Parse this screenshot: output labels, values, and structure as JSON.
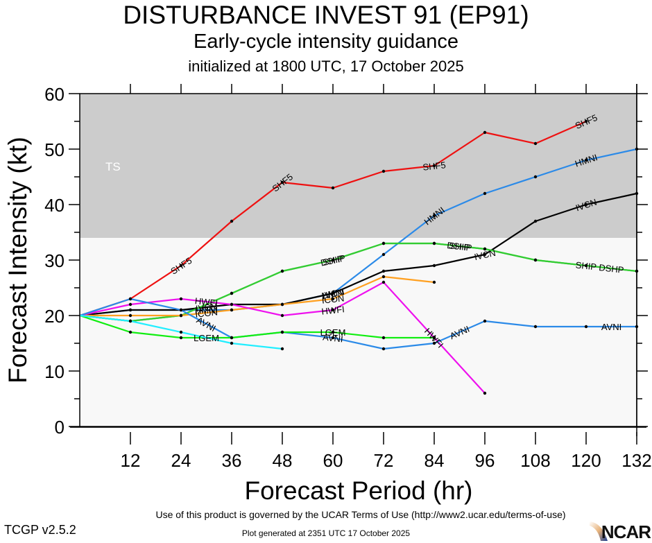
{
  "header": {
    "title": "DISTURBANCE INVEST 91 (EP91)",
    "subtitle": "Early-cycle intensity guidance",
    "init": "initialized at 1800 UTC, 17 October 2025"
  },
  "footer": {
    "terms": "Use of this product is governed by the UCAR Terms of Use (http://www2.ucar.edu/terms-of-use)",
    "version": "TCGP v2.5.2",
    "generated": "Plot generated at 2351 UTC   17 October 2025",
    "logo": "NCAR"
  },
  "chart_data": {
    "type": "line",
    "title": "Early-cycle intensity guidance",
    "xlabel": "Forecast Period (hr)",
    "ylabel": "Forecast Intensity (kt)",
    "xlim": [
      0,
      132
    ],
    "ylim": [
      0,
      60
    ],
    "xticks": [
      12,
      24,
      36,
      48,
      60,
      72,
      84,
      96,
      108,
      120,
      132
    ],
    "yticks": [
      0,
      10,
      20,
      30,
      40,
      50,
      60
    ],
    "regions": [
      {
        "label": "TS",
        "from": 34,
        "to": 60,
        "color": "#cccccc"
      },
      {
        "label": "",
        "from": 0,
        "to": 34,
        "color": "#f8f8f8"
      }
    ],
    "series": [
      {
        "name": "SHF5",
        "color": "#ee1111",
        "x": [
          0,
          12,
          24,
          36,
          48,
          60,
          72,
          84,
          96,
          108,
          120
        ],
        "values": [
          20,
          23,
          29,
          37,
          44,
          43,
          46,
          47,
          53,
          51,
          55
        ],
        "label_at": [
          24,
          48,
          84,
          120
        ]
      },
      {
        "name": "HMNI",
        "color": "#2b8ae8",
        "x": [
          0,
          12,
          24,
          36,
          48,
          60,
          72,
          84,
          96,
          108,
          120,
          132
        ],
        "values": [
          20,
          21,
          21,
          21,
          22,
          24,
          31,
          38,
          42,
          45,
          48,
          50
        ],
        "label_at": [
          30,
          60,
          84,
          120
        ]
      },
      {
        "name": "IVCN",
        "color": "#000000",
        "x": [
          0,
          12,
          24,
          36,
          48,
          60,
          72,
          84,
          96,
          108,
          120,
          132
        ],
        "values": [
          20,
          21,
          21,
          22,
          22,
          24,
          28,
          29,
          31,
          37,
          40,
          42
        ],
        "label_at": [
          30,
          60,
          96,
          120
        ]
      },
      {
        "name": "DSHP",
        "color": "#33cc33",
        "x": [
          0,
          12,
          24,
          36,
          48,
          60,
          72,
          84,
          96,
          108,
          120,
          132
        ],
        "values": [
          20,
          19,
          20,
          24,
          28,
          30,
          33,
          33,
          32,
          30,
          29,
          28
        ],
        "label_at": [
          60,
          90,
          126
        ]
      },
      {
        "name": "SHIP",
        "color": "#33cc33",
        "x": [
          0,
          12,
          24,
          36,
          48,
          60,
          72,
          84,
          96,
          108,
          120,
          132
        ],
        "values": [
          20,
          19,
          20,
          24,
          28,
          30,
          33,
          33,
          32,
          30,
          29,
          28
        ],
        "label_at": [
          60,
          90,
          120
        ]
      },
      {
        "name": "ICON",
        "color": "#ffa020",
        "x": [
          0,
          12,
          24,
          36,
          48,
          60,
          72,
          84
        ],
        "values": [
          20,
          20,
          20,
          21,
          22,
          23,
          27,
          26
        ],
        "label_at": [
          30,
          60
        ]
      },
      {
        "name": "HWFI",
        "color": "#ee11ee",
        "x": [
          0,
          12,
          24,
          36,
          48,
          60,
          72,
          84,
          96
        ],
        "values": [
          20,
          22,
          23,
          22,
          20,
          21,
          26,
          16,
          6
        ],
        "label_at": [
          30,
          60,
          84
        ]
      },
      {
        "name": "AVNI",
        "color": "#2b8ae8",
        "x": [
          0,
          12,
          24,
          36,
          48,
          60,
          72,
          84,
          96,
          108,
          120,
          132
        ],
        "values": [
          20,
          23,
          21,
          16,
          17,
          16,
          14,
          15,
          19,
          18,
          18,
          18
        ],
        "label_at": [
          30,
          60,
          90,
          126
        ]
      },
      {
        "name": "LGEM",
        "color": "#11ee11",
        "x": [
          0,
          12,
          24,
          36,
          48,
          60,
          72,
          84
        ],
        "values": [
          20,
          17,
          16,
          16,
          17,
          17,
          16,
          16
        ],
        "label_at": [
          30,
          60
        ]
      },
      {
        "name": "",
        "color": "#22eeff",
        "x": [
          0,
          12,
          24,
          36,
          48
        ],
        "values": [
          20,
          19,
          17,
          15,
          14
        ],
        "label_at": []
      }
    ]
  }
}
